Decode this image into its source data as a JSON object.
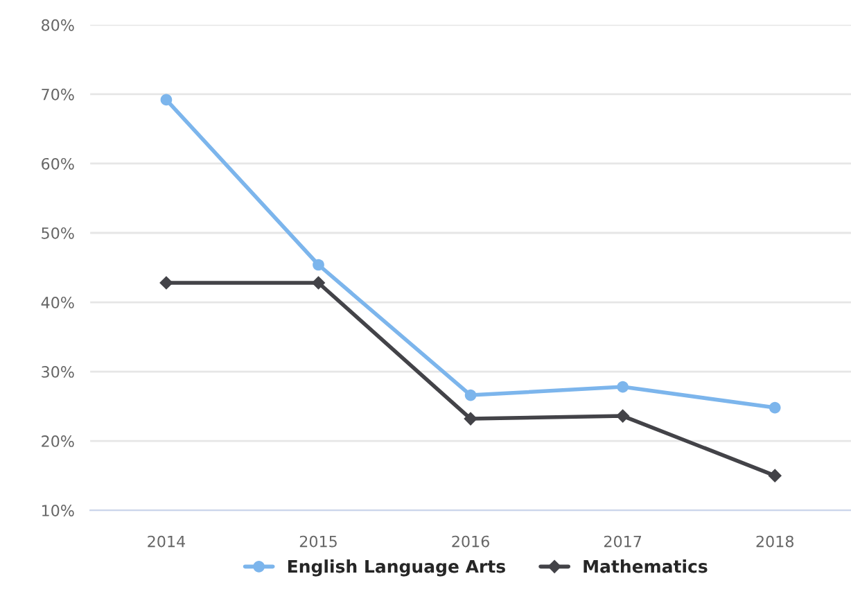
{
  "chart_data": {
    "type": "line",
    "categories": [
      "2014",
      "2015",
      "2016",
      "2017",
      "2018"
    ],
    "series": [
      {
        "name": "English Language Arts",
        "color": "#7cb5ec",
        "marker": "circle",
        "values": [
          69.2,
          45.4,
          26.6,
          27.8,
          24.8
        ]
      },
      {
        "name": "Mathematics",
        "color": "#434348",
        "marker": "diamond",
        "values": [
          42.8,
          42.8,
          23.2,
          23.6,
          15.0
        ]
      }
    ],
    "ylim": [
      10,
      80
    ],
    "yticks": [
      {
        "value": 10,
        "label": "10%"
      },
      {
        "value": 20,
        "label": "20%"
      },
      {
        "value": 30,
        "label": "30%"
      },
      {
        "value": 40,
        "label": "40%"
      },
      {
        "value": 50,
        "label": "50%"
      },
      {
        "value": 60,
        "label": "60%"
      },
      {
        "value": 70,
        "label": "70%"
      },
      {
        "value": 80,
        "label": "80%"
      }
    ],
    "grid": "y",
    "legend": "bottom",
    "line_style": "solid"
  }
}
